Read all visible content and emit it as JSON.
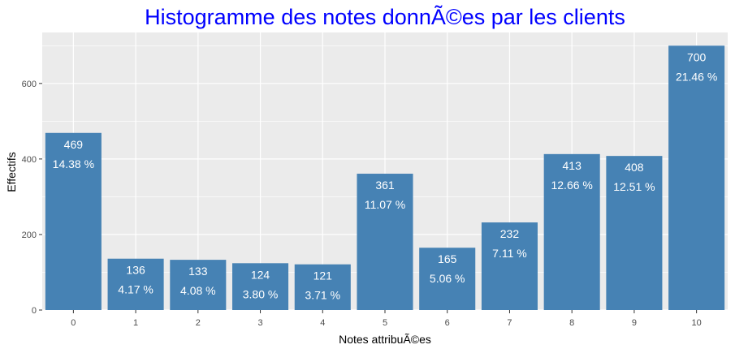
{
  "chart_data": {
    "type": "bar",
    "title": "Histogramme des notes donnÃ©es par les clients",
    "xlabel": "Notes attribuÃ©es",
    "ylabel": "Effectifs",
    "categories": [
      "0",
      "1",
      "2",
      "3",
      "4",
      "5",
      "6",
      "7",
      "8",
      "9",
      "10"
    ],
    "values": [
      469,
      136,
      133,
      124,
      121,
      361,
      165,
      232,
      413,
      408,
      700
    ],
    "percent_labels": [
      "14.38 %",
      "4.17 %",
      "4.08 %",
      "3.80 %",
      "3.71 %",
      "11.07 %",
      "5.06 %",
      "7.11 %",
      "12.66 %",
      "12.51 %",
      "21.46 %"
    ],
    "ylim": [
      0,
      735
    ],
    "yticks": [
      0,
      200,
      400,
      600
    ],
    "grid": true,
    "colors": {
      "bar": "#4682b4",
      "panel_background": "#ebebeb",
      "grid": "#ffffff",
      "title": "#0000ff",
      "bar_label": "#ffffff",
      "tick_label": "#4d4d4d"
    }
  }
}
